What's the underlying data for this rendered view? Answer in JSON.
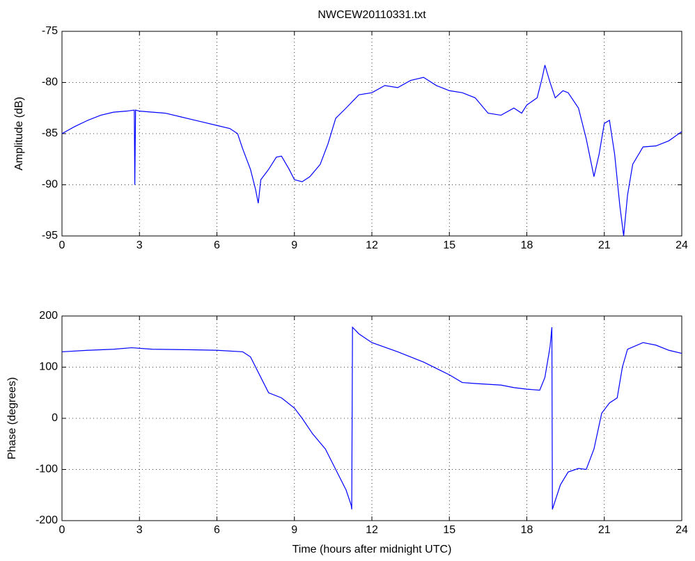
{
  "chart_data": [
    {
      "type": "line",
      "title": "NWCEW20110331.txt",
      "ylabel": "Amplitude (dB)",
      "color": "#0000ff",
      "grid": true,
      "xlim": [
        0,
        24
      ],
      "ylim": [
        -95,
        -75
      ],
      "xticks": [
        0,
        3,
        6,
        9,
        12,
        15,
        18,
        21,
        24
      ],
      "yticks": [
        -95,
        -90,
        -85,
        -80,
        -75
      ],
      "x": [
        0,
        0.5,
        1,
        1.5,
        2,
        2.5,
        2.8,
        2.82,
        2.85,
        3,
        3.5,
        4,
        4.5,
        5,
        5.5,
        6,
        6.5,
        6.8,
        7,
        7.3,
        7.5,
        7.6,
        7.7,
        8,
        8.3,
        8.5,
        8.8,
        9,
        9.3,
        9.6,
        10,
        10.3,
        10.6,
        11,
        11.5,
        12,
        12.5,
        13,
        13.5,
        14,
        14.5,
        15,
        15.5,
        16,
        16.5,
        17,
        17.5,
        17.8,
        18,
        18.4,
        18.6,
        18.7,
        18.9,
        19.1,
        19.4,
        19.6,
        20,
        20.3,
        20.6,
        20.8,
        21,
        21.2,
        21.4,
        21.6,
        21.75,
        21.9,
        22.1,
        22.5,
        23,
        23.5,
        24
      ],
      "values": [
        -85,
        -84.3,
        -83.7,
        -83.2,
        -82.9,
        -82.8,
        -82.7,
        -90,
        -82.7,
        -82.8,
        -82.9,
        -83,
        -83.3,
        -83.6,
        -83.9,
        -84.2,
        -84.5,
        -85,
        -86.5,
        -88.5,
        -90.5,
        -91.8,
        -89.5,
        -88.5,
        -87.3,
        -87.2,
        -88.5,
        -89.5,
        -89.7,
        -89.2,
        -88,
        -86,
        -83.5,
        -82.5,
        -81.2,
        -81,
        -80.3,
        -80.5,
        -79.8,
        -79.5,
        -80.3,
        -80.8,
        -81,
        -81.5,
        -83,
        -83.2,
        -82.5,
        -83,
        -82.2,
        -81.5,
        -79.5,
        -78.3,
        -80,
        -81.5,
        -80.8,
        -81,
        -82.5,
        -85.5,
        -89.2,
        -87,
        -84,
        -83.7,
        -87,
        -92,
        -95,
        -91,
        -88,
        -86.3,
        -86.2,
        -85.7,
        -84.8
      ]
    },
    {
      "type": "line",
      "xlabel": "Time (hours after midnight UTC)",
      "ylabel": "Phase (degrees)",
      "color": "#0000ff",
      "grid": true,
      "xlim": [
        0,
        24
      ],
      "ylim": [
        -200,
        200
      ],
      "xticks": [
        0,
        3,
        6,
        9,
        12,
        15,
        18,
        21,
        24
      ],
      "yticks": [
        -200,
        -100,
        0,
        100,
        200
      ],
      "x": [
        0,
        1,
        2,
        2.7,
        3.5,
        5,
        6,
        7,
        7.3,
        7.5,
        7.8,
        8,
        8.5,
        9,
        9.3,
        9.7,
        10.2,
        10.6,
        11,
        11.2,
        11.22,
        11.25,
        11.5,
        12,
        13,
        14,
        15,
        15.5,
        16,
        17,
        17.5,
        18,
        18.5,
        18.7,
        18.9,
        18.97,
        18.99,
        19.3,
        19.6,
        20,
        20.3,
        20.6,
        20.9,
        21.2,
        21.5,
        21.7,
        21.9,
        22.5,
        23,
        23.5,
        24
      ],
      "values": [
        130,
        133,
        135,
        138,
        135,
        134,
        133,
        130,
        120,
        100,
        70,
        50,
        40,
        20,
        0,
        -30,
        -60,
        -100,
        -140,
        -170,
        -178,
        178,
        165,
        148,
        130,
        110,
        85,
        70,
        68,
        65,
        60,
        57,
        55,
        80,
        140,
        178,
        -178,
        -130,
        -105,
        -98,
        -100,
        -60,
        10,
        30,
        40,
        100,
        135,
        148,
        143,
        133,
        127
      ]
    }
  ]
}
